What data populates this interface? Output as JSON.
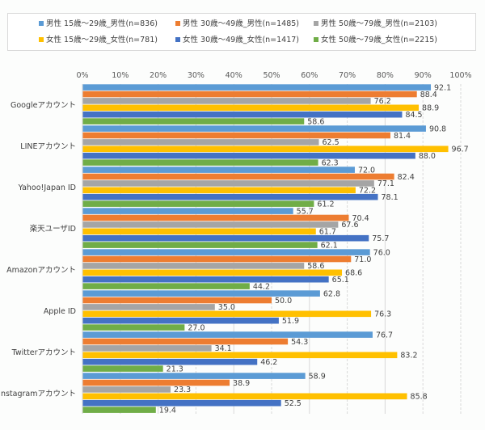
{
  "chart_data": {
    "type": "bar",
    "orientation": "horizontal",
    "title": "",
    "xlabel": "",
    "ylabel": "",
    "xlim": [
      0,
      100
    ],
    "x_ticks": [
      "0%",
      "10%",
      "20%",
      "30%",
      "40%",
      "50%",
      "60%",
      "70%",
      "80%",
      "90%",
      "100%"
    ],
    "grid": true,
    "legend_position": "top",
    "categories": [
      "Googleアカウント",
      "LINEアカウント",
      "Yahoo!Japan ID",
      "楽天ユーザID",
      "Amazonアカウント",
      "Apple ID",
      "Twitterアカウント",
      "Instagramアカウント"
    ],
    "series": [
      {
        "name": "男性 15歳～29歳_男性(n=836)",
        "color": "#5b9bd5",
        "values": [
          92.1,
          90.8,
          72.0,
          55.7,
          76.0,
          62.8,
          76.7,
          58.9
        ]
      },
      {
        "name": "男性 30歳～49歳_男性(n=1485)",
        "color": "#ed7d31",
        "values": [
          88.4,
          81.4,
          82.4,
          70.4,
          71.0,
          50.0,
          54.3,
          38.9
        ]
      },
      {
        "name": "男性 50歳～79歳_男性(n=2103)",
        "color": "#a5a5a5",
        "values": [
          76.2,
          62.5,
          77.1,
          67.6,
          58.6,
          35.0,
          34.1,
          23.3
        ]
      },
      {
        "name": "女性 15歳～29歳_女性(n=781)",
        "color": "#ffc000",
        "values": [
          88.9,
          96.7,
          72.2,
          61.7,
          68.6,
          76.3,
          83.2,
          85.8
        ]
      },
      {
        "name": "女性 30歳～49歳_女性(n=1417)",
        "color": "#4472c4",
        "values": [
          84.5,
          88.0,
          78.1,
          75.7,
          65.1,
          51.9,
          46.2,
          52.5
        ]
      },
      {
        "name": "女性 50歳～79歳_女性(n=2215)",
        "color": "#70ad47",
        "values": [
          58.6,
          62.3,
          61.2,
          62.1,
          44.2,
          27.0,
          21.3,
          19.4
        ]
      }
    ]
  }
}
